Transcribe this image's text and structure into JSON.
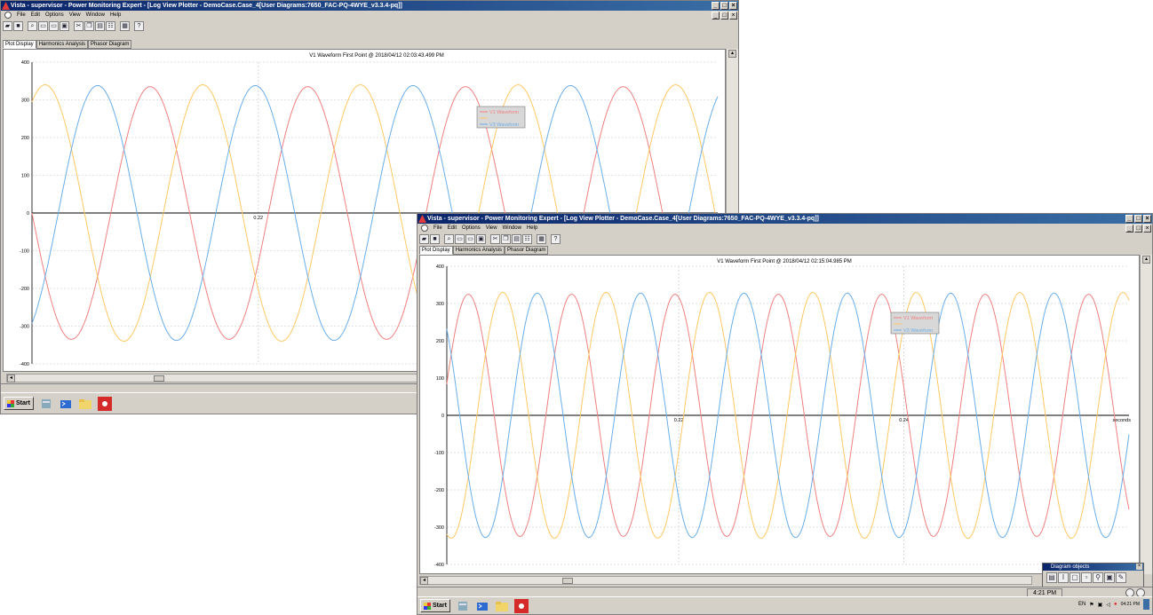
{
  "window_back": {
    "title": "Vista - supervisor - Power Monitoring Expert - [Log View Plotter - DemoCase.Case_4[User Diagrams:7650_FAC-PQ-4WYE_v3.3.4-pq]]",
    "menus": [
      "File",
      "Edit",
      "Options",
      "View",
      "Window",
      "Help"
    ],
    "tabs": [
      "Plot Display",
      "Harmonics Analysis",
      "Phasor Diagram"
    ],
    "plot_title": "V1 Waveform First Point @ 2018/04/12 02:03:43.499 PM",
    "taskbar": {
      "start_label": "Start"
    }
  },
  "window_front": {
    "title": "Vista - supervisor - Power Monitoring Expert - [Log View Plotter - DemoCase.Case_4[User Diagrams:7650_FAC-PQ-4WYE_v3.3.4-pq]]",
    "menus": [
      "File",
      "Edit",
      "Options",
      "View",
      "Window",
      "Help"
    ],
    "tabs": [
      "Plot Display",
      "Harmonics Analysis",
      "Phasor Diagram"
    ],
    "plot_title": "V1 Waveform First Point @ 2018/04/12 02:15:04.985 PM",
    "status_time": "4:21 PM",
    "diagram_panel_title": "Diagram objects",
    "taskbar": {
      "start_label": "Start",
      "tray_lang": "EN",
      "tray_time": "04:21 PM"
    }
  },
  "colors": {
    "v1": "#f08080",
    "v2": "#ffc864",
    "v3": "#6aaeea",
    "titlebar": "#0a246a"
  },
  "chart_data": [
    {
      "type": "line",
      "title": "V1 Waveform First Point @ 2018/04/12 02:03:43.499 PM",
      "ylim": [
        -400,
        400
      ],
      "yticks": [
        "400",
        "300",
        "200",
        "100",
        "0",
        "-100",
        "-200",
        "-300",
        "-400"
      ],
      "xticks": [
        "0.22"
      ],
      "series": [
        {
          "name": "V1 Waveform",
          "color": "#f08080",
          "amplitude": 335,
          "phase_deg": 180
        },
        {
          "name": "",
          "color": "#ffc864",
          "amplitude": 340,
          "phase_deg": 60
        },
        {
          "name": "V3 Waveform",
          "color": "#6aaeea",
          "amplitude": 338,
          "phase_deg": 300
        }
      ],
      "legend": [
        "V1 Waveform",
        "",
        "V3 Waveform"
      ],
      "legend_position": "top-right"
    },
    {
      "type": "line",
      "title": "V1 Waveform First Point @ 2018/04/12 02:15:04.985 PM",
      "ylim": [
        -400,
        400
      ],
      "yticks": [
        "400",
        "300",
        "200",
        "100",
        "0",
        "-100",
        "-200",
        "-300",
        "-400"
      ],
      "xticks": [
        "0.22",
        "0.24"
      ],
      "xlabel_right": "seconds",
      "series": [
        {
          "name": "V1 Waveform",
          "color": "#f08080",
          "amplitude": 325,
          "phase_deg": 15
        },
        {
          "name": "",
          "color": "#ffc864",
          "amplitude": 330,
          "phase_deg": 255
        },
        {
          "name": "V3 Waveform",
          "color": "#6aaeea",
          "amplitude": 328,
          "phase_deg": 135
        }
      ],
      "legend": [
        "V1 Waveform",
        "",
        "V3 Waveform"
      ],
      "legend_position": "top-right"
    }
  ]
}
